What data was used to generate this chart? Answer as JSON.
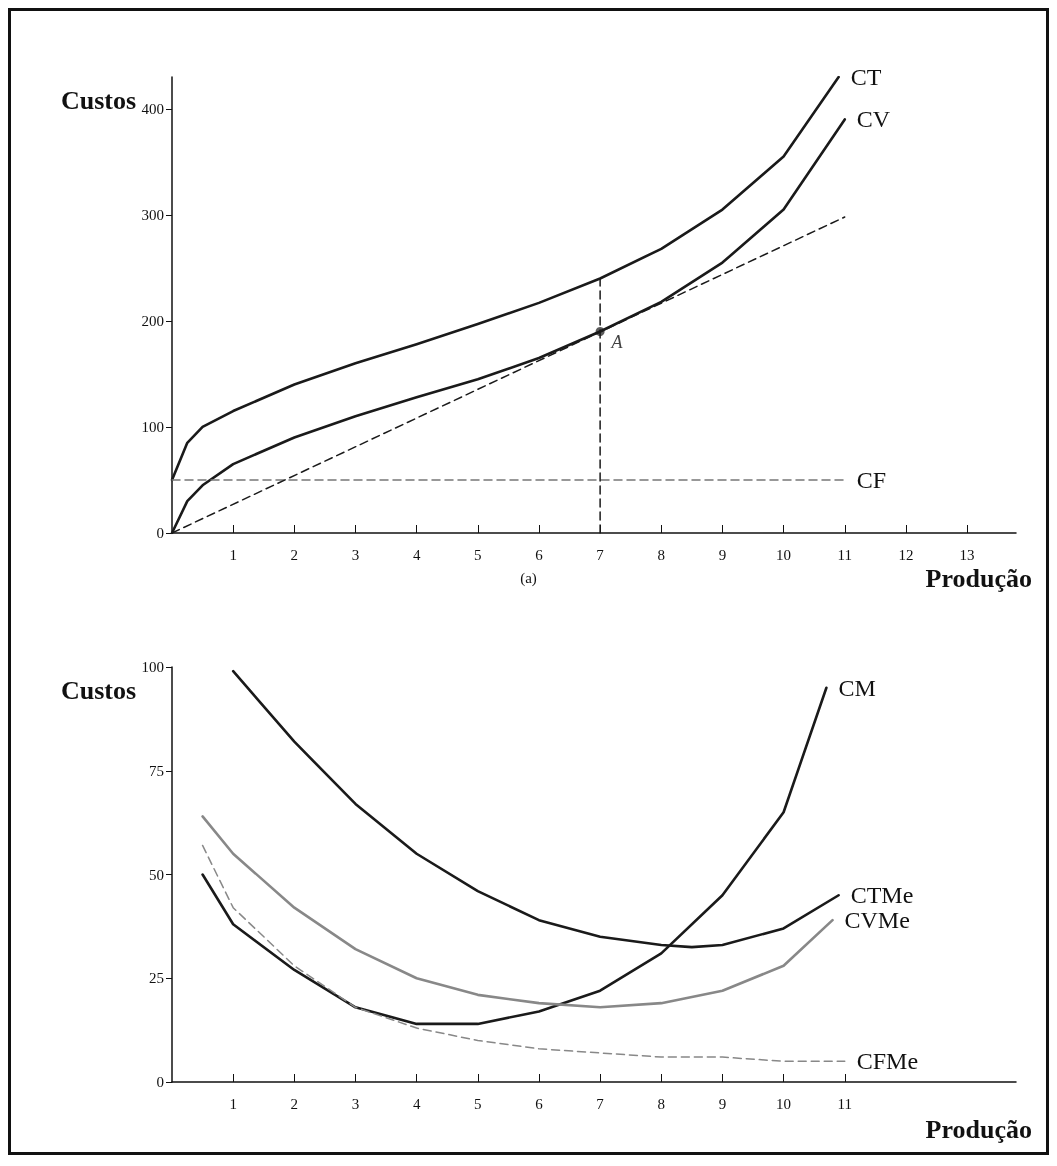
{
  "chart_data": [
    {
      "type": "line",
      "xlabel": "Produção",
      "ylabel": "Custos",
      "xlim": [
        0,
        13.8
      ],
      "ylim": [
        0,
        430
      ],
      "xticks": [
        1,
        2,
        3,
        4,
        5,
        6,
        7,
        8,
        9,
        10,
        11,
        12,
        13
      ],
      "yticks": [
        0,
        100,
        200,
        300,
        400
      ],
      "grid": false,
      "legend": false,
      "marker": "none",
      "annotations": [
        "(a)",
        {
          "text": "A",
          "x": 7,
          "y": 190
        }
      ],
      "series": [
        {
          "name": "CT",
          "color": "#1a1a1a",
          "line_style": "solid",
          "x": [
            0,
            0.25,
            0.5,
            1,
            2,
            3,
            4,
            5,
            6,
            7,
            8,
            9,
            10,
            10.9
          ],
          "values": [
            50,
            85,
            100,
            115,
            140,
            160,
            178,
            197,
            217,
            240,
            268,
            305,
            355,
            430
          ]
        },
        {
          "name": "CV",
          "color": "#1a1a1a",
          "line_style": "solid",
          "x": [
            0,
            0.25,
            0.5,
            1,
            2,
            3,
            4,
            5,
            6,
            7,
            8,
            9,
            10,
            11
          ],
          "values": [
            0,
            30,
            45,
            65,
            90,
            110,
            128,
            145,
            165,
            190,
            218,
            255,
            305,
            390
          ]
        },
        {
          "name": "CF",
          "color": "#777777",
          "line_style": "dashed",
          "x": [
            0,
            11
          ],
          "values": [
            50,
            50
          ]
        },
        {
          "color": "#1a1a1a",
          "line_style": "dashed",
          "x": [
            0,
            11
          ],
          "values": [
            0,
            298
          ]
        },
        {
          "color": "#1a1a1a",
          "line_style": "dashed",
          "x": [
            7,
            7
          ],
          "values": [
            0,
            240
          ]
        }
      ]
    },
    {
      "type": "line",
      "xlabel": "Produção",
      "ylabel": "Custos",
      "xlim": [
        0,
        13.8
      ],
      "ylim": [
        0,
        100
      ],
      "xticks": [
        1,
        2,
        3,
        4,
        5,
        6,
        7,
        8,
        9,
        10,
        11
      ],
      "yticks": [
        0,
        25,
        50,
        75,
        100
      ],
      "grid": false,
      "legend": false,
      "marker": "none",
      "series": [
        {
          "name": "CM",
          "color": "#1a1a1a",
          "line_style": "solid",
          "x": [
            0.5,
            1,
            2,
            3,
            4,
            5,
            6,
            7,
            8,
            9,
            10,
            10.7
          ],
          "values": [
            50,
            38,
            27,
            18,
            14,
            14,
            17,
            22,
            31,
            45,
            65,
            95
          ]
        },
        {
          "name": "CTMe",
          "color": "#1a1a1a",
          "line_style": "solid",
          "x": [
            1,
            2,
            3,
            4,
            5,
            6,
            7,
            8,
            8.5,
            9,
            10,
            10.9
          ],
          "values": [
            99,
            82,
            67,
            55,
            46,
            39,
            35,
            33,
            32.5,
            33,
            37,
            45
          ]
        },
        {
          "name": "CVMe",
          "color": "#888888",
          "line_style": "solid",
          "x": [
            0.5,
            1,
            2,
            3,
            4,
            5,
            6,
            7,
            8,
            9,
            10,
            10.8
          ],
          "values": [
            64,
            55,
            42,
            32,
            25,
            21,
            19,
            18,
            19,
            22,
            28,
            39
          ]
        },
        {
          "name": "CFMe",
          "color": "#888888",
          "line_style": "dashed",
          "x": [
            0.5,
            1,
            2,
            3,
            4,
            5,
            6,
            7,
            8,
            9,
            10,
            11
          ],
          "values": [
            57,
            42,
            28,
            18,
            13,
            10,
            8,
            7,
            6,
            6,
            5,
            5
          ]
        }
      ]
    }
  ]
}
